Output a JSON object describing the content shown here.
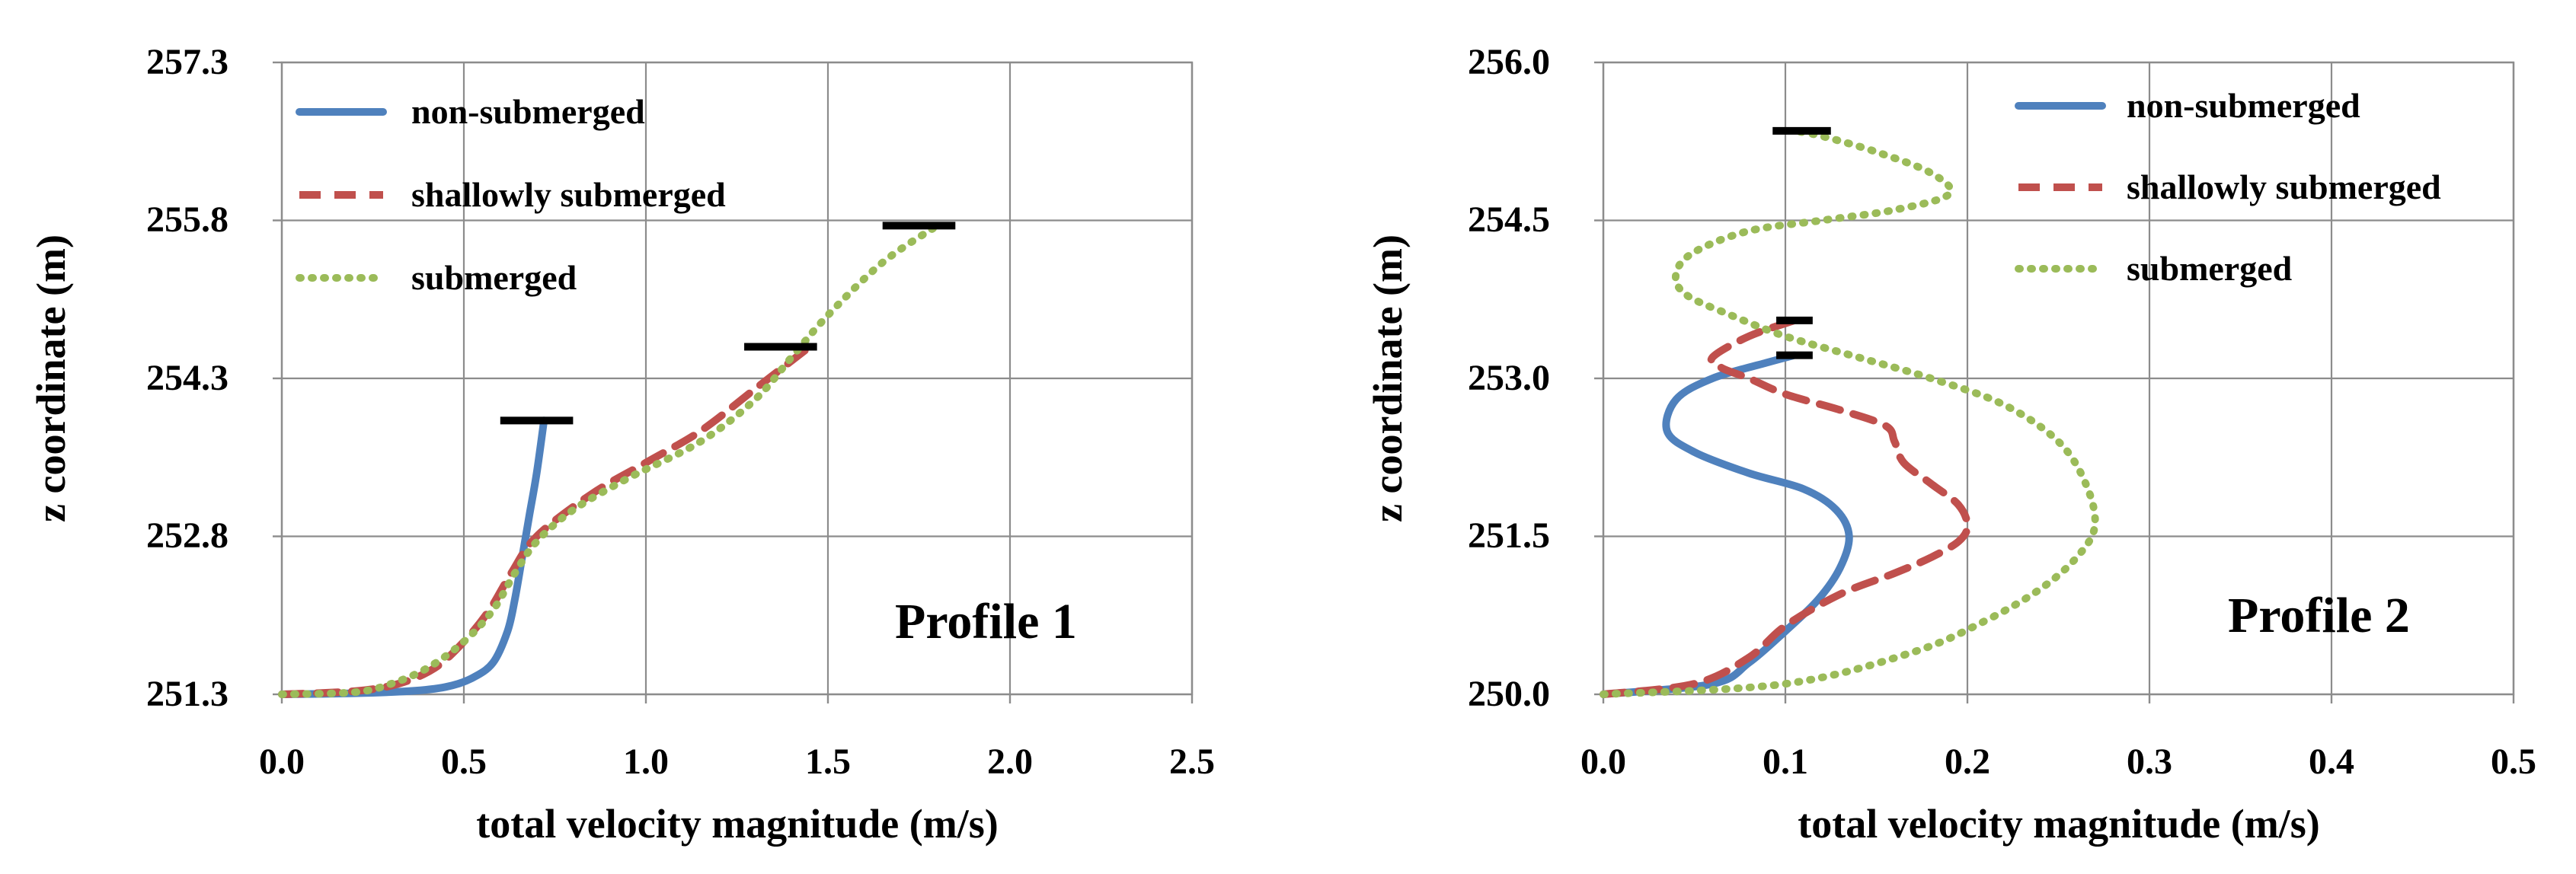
{
  "chart_data": [
    {
      "type": "line",
      "panel": "left",
      "title": "Profile 1",
      "xlabel": "total velocity magnitude (m/s)",
      "ylabel": "z coordinate (m)",
      "xlim": [
        0.0,
        2.5
      ],
      "ylim": [
        251.3,
        257.3
      ],
      "xticks": [
        0.0,
        0.5,
        1.0,
        1.5,
        2.0,
        2.5
      ],
      "xtick_labels": [
        "0.0",
        "0.5",
        "1.0",
        "1.5",
        "2.0",
        "2.5"
      ],
      "yticks": [
        251.3,
        252.8,
        254.3,
        255.8,
        257.3
      ],
      "ytick_labels": [
        "251.3",
        "252.8",
        "254.3",
        "255.8",
        "257.3"
      ],
      "grid": true,
      "legend_position": "top-left",
      "series": [
        {
          "name": "non-submerged",
          "style": "solid",
          "color": "#4f81bd",
          "x": [
            0.0,
            0.2,
            0.35,
            0.45,
            0.52,
            0.58,
            0.62,
            0.64,
            0.66,
            0.68,
            0.7,
            0.72
          ],
          "y": [
            251.3,
            251.31,
            251.33,
            251.37,
            251.45,
            251.6,
            251.9,
            252.2,
            252.6,
            253.0,
            253.4,
            253.9
          ],
          "surface": {
            "x": [
              0.6,
              0.8
            ],
            "y": 253.9
          }
        },
        {
          "name": "shallowly submerged",
          "style": "dashed",
          "color": "#c0504d",
          "x": [
            0.0,
            0.2,
            0.32,
            0.42,
            0.5,
            0.57,
            0.63,
            0.7,
            0.85,
            1.0,
            1.15,
            1.3,
            1.45
          ],
          "y": [
            251.3,
            251.33,
            251.4,
            251.55,
            251.8,
            252.1,
            252.45,
            252.8,
            253.2,
            253.5,
            253.8,
            254.2,
            254.6
          ],
          "surface": {
            "x": [
              1.27,
              1.47
            ],
            "y": 254.6
          }
        },
        {
          "name": "submerged",
          "style": "dotted",
          "color": "#9bbb59",
          "x": [
            0.0,
            0.2,
            0.3,
            0.4,
            0.5,
            0.58,
            0.64,
            0.7,
            0.8,
            0.95,
            1.15,
            1.3,
            1.4,
            1.5,
            1.65,
            1.8
          ],
          "y": [
            251.3,
            251.32,
            251.4,
            251.55,
            251.8,
            252.1,
            252.45,
            252.75,
            253.05,
            253.35,
            253.7,
            254.1,
            254.5,
            254.9,
            255.4,
            255.75
          ],
          "surface": {
            "x": [
              1.65,
              1.85
            ],
            "y": 255.75
          }
        }
      ]
    },
    {
      "type": "line",
      "panel": "right",
      "title": "Profile 2",
      "xlabel": "total velocity magnitude (m/s)",
      "ylabel": "z coordinate (m)",
      "xlim": [
        0.0,
        0.5
      ],
      "ylim": [
        250.0,
        256.0
      ],
      "xticks": [
        0.0,
        0.1,
        0.2,
        0.3,
        0.4,
        0.5
      ],
      "xtick_labels": [
        "0.0",
        "0.1",
        "0.2",
        "0.3",
        "0.4",
        "0.5"
      ],
      "yticks": [
        250.0,
        251.5,
        253.0,
        254.5,
        256.0
      ],
      "ytick_labels": [
        "250.0",
        "251.5",
        "253.0",
        "254.5",
        "256.0"
      ],
      "grid": true,
      "legend_position": "top-right",
      "series": [
        {
          "name": "non-submerged",
          "style": "solid",
          "color": "#4f81bd",
          "x": [
            0.0,
            0.06,
            0.08,
            0.1,
            0.118,
            0.13,
            0.135,
            0.128,
            0.11,
            0.08,
            0.05,
            0.035,
            0.04,
            0.06,
            0.09,
            0.105
          ],
          "y": [
            250.0,
            250.1,
            250.3,
            250.6,
            250.9,
            251.2,
            251.5,
            251.75,
            251.95,
            252.1,
            252.3,
            252.5,
            252.8,
            253.0,
            253.15,
            253.22
          ],
          "surface": {
            "x": [
              0.095,
              0.115
            ],
            "y": 253.22
          }
        },
        {
          "name": "shallowly submerged",
          "style": "dashed",
          "color": "#c0504d",
          "x": [
            0.0,
            0.05,
            0.08,
            0.1,
            0.13,
            0.16,
            0.18,
            0.195,
            0.2,
            0.195,
            0.18,
            0.165,
            0.16,
            0.155,
            0.13,
            0.1,
            0.08,
            0.065,
            0.06,
            0.08,
            0.105
          ],
          "y": [
            250.0,
            250.1,
            250.35,
            250.65,
            250.95,
            251.15,
            251.3,
            251.45,
            251.6,
            251.8,
            252.0,
            252.2,
            252.4,
            252.55,
            252.7,
            252.85,
            253.0,
            253.1,
            253.2,
            253.4,
            253.55
          ],
          "surface": {
            "x": [
              0.095,
              0.115
            ],
            "y": 253.55
          }
        },
        {
          "name": "submerged",
          "style": "dotted",
          "color": "#9bbb59",
          "x": [
            0.0,
            0.1,
            0.17,
            0.21,
            0.24,
            0.26,
            0.27,
            0.265,
            0.25,
            0.22,
            0.18,
            0.14,
            0.1,
            0.07,
            0.045,
            0.04,
            0.05,
            0.08,
            0.12,
            0.16,
            0.19,
            0.18,
            0.15,
            0.12,
            0.105
          ],
          "y": [
            250.0,
            250.1,
            250.4,
            250.7,
            251.0,
            251.3,
            251.6,
            252.0,
            252.4,
            252.75,
            253.0,
            253.2,
            253.4,
            253.6,
            253.8,
            254.0,
            254.2,
            254.4,
            254.5,
            254.6,
            254.75,
            254.95,
            255.15,
            255.3,
            255.35
          ],
          "surface": {
            "x": [
              0.093,
              0.125
            ],
            "y": 255.35
          }
        }
      ]
    }
  ],
  "colors": {
    "non_submerged": "#4f81bd",
    "shallowly_submerged": "#c0504d",
    "submerged": "#9bbb59",
    "grid": "#8c8c8c",
    "surface_marker": "#000000"
  }
}
